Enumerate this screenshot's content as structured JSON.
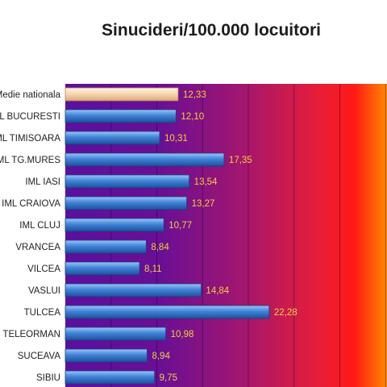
{
  "chart_data": {
    "type": "bar",
    "orientation": "horizontal",
    "title": "Sinucideri/100.000 locuitori",
    "categories": [
      "Medie nationala",
      "IML BUCURESTI",
      "IML TIMISOARA",
      "IML TG.MURES",
      "IML IASI",
      "IML CRAIOVA",
      "IML CLUJ",
      "VRANCEA",
      "VILCEA",
      "VASLUI",
      "TULCEA",
      "TELEORMAN",
      "SUCEAVA",
      "SIBIU"
    ],
    "values": [
      12.33,
      12.1,
      10.31,
      17.35,
      13.54,
      13.27,
      10.77,
      8.84,
      8.11,
      14.84,
      22.28,
      10.98,
      8.94,
      9.75
    ],
    "value_labels": [
      "12,33",
      "12,10",
      "10,31",
      "17,35",
      "13,54",
      "13,27",
      "10,77",
      "8,84",
      "8,11",
      "14,84",
      "22,28",
      "10,98",
      "8,94",
      "9,75"
    ],
    "xlim": [
      0,
      35
    ],
    "grid": true,
    "legend": "none",
    "colors": {
      "highlight_bar": "#f6d4ad",
      "bar": "#3f84d8",
      "value_label": "#f2d23a",
      "background_left": "#5a109e",
      "background_right": "#ff7a00"
    }
  }
}
